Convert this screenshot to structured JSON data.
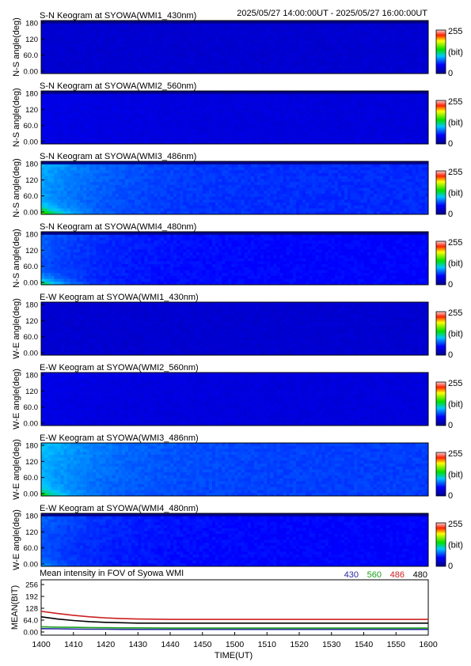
{
  "header": {
    "time_range": "2025/05/27 14:00:00UT - 2025/05/27 16:00:00UT"
  },
  "colorbar": {
    "max_label": "255",
    "unit_label": "(bit)",
    "min_label": "0"
  },
  "chart_data": [
    {
      "type": "heatmap",
      "title": "S-N Keogram at SYOWA(WMI1_430nm)",
      "ylabel": "N-S angle(deg)",
      "yticks": [
        "180",
        "120",
        "60.0",
        "0.00"
      ],
      "ylim": [
        0,
        180
      ],
      "xlim": [
        1400,
        1600
      ],
      "zlim": [
        0,
        255
      ],
      "colorscale": "rainbow",
      "description_level": {
        "base": 0.12,
        "early_boost": 0.0,
        "low_angle_boost": 0.0,
        "top_band_dark": true
      }
    },
    {
      "type": "heatmap",
      "title": "S-N Keogram at SYOWA(WMI2_560nm)",
      "ylabel": "N-S angle(deg)",
      "yticks": [
        "180",
        "120",
        "60.0",
        "0.00"
      ],
      "ylim": [
        0,
        180
      ],
      "xlim": [
        1400,
        1600
      ],
      "zlim": [
        0,
        255
      ],
      "colorscale": "rainbow",
      "description_level": {
        "base": 0.14,
        "early_boost": 0.02,
        "low_angle_boost": 0.0,
        "top_band_dark": true
      }
    },
    {
      "type": "heatmap",
      "title": "S-N Keogram at SYOWA(WMI3_486nm)",
      "ylabel": "N-S angle(deg)",
      "yticks": [
        "180",
        "120",
        "60.0",
        "0.00"
      ],
      "ylim": [
        0,
        180
      ],
      "xlim": [
        1400,
        1600
      ],
      "zlim": [
        0,
        255
      ],
      "colorscale": "rainbow",
      "description_level": {
        "base": 0.24,
        "early_boost": 0.14,
        "low_angle_boost": 0.45,
        "top_band_dark": true
      }
    },
    {
      "type": "heatmap",
      "title": "S-N Keogram at SYOWA(WMI4_480nm)",
      "ylabel": "N-S angle(deg)",
      "yticks": [
        "180",
        "120",
        "60.0",
        "0.00"
      ],
      "ylim": [
        0,
        180
      ],
      "xlim": [
        1400,
        1600
      ],
      "zlim": [
        0,
        255
      ],
      "colorscale": "rainbow",
      "description_level": {
        "base": 0.2,
        "early_boost": 0.1,
        "low_angle_boost": 0.4,
        "top_band_dark": true
      }
    },
    {
      "type": "heatmap",
      "title": "E-W Keogram at SYOWA(WMI1_430nm)",
      "ylabel": "W-E angle(deg)",
      "yticks": [
        "180",
        "120",
        "60.0",
        "0.00"
      ],
      "ylim": [
        0,
        180
      ],
      "xlim": [
        1400,
        1600
      ],
      "zlim": [
        0,
        255
      ],
      "colorscale": "rainbow",
      "description_level": {
        "base": 0.12,
        "early_boost": 0.0,
        "low_angle_boost": 0.0,
        "top_band_dark": false
      }
    },
    {
      "type": "heatmap",
      "title": "E-W Keogram at SYOWA(WMI2_560nm)",
      "ylabel": "W-E angle(deg)",
      "yticks": [
        "180",
        "120",
        "60.0",
        "0.00"
      ],
      "ylim": [
        0,
        180
      ],
      "xlim": [
        1400,
        1600
      ],
      "zlim": [
        0,
        255
      ],
      "colorscale": "rainbow",
      "description_level": {
        "base": 0.14,
        "early_boost": 0.02,
        "low_angle_boost": 0.0,
        "top_band_dark": false
      }
    },
    {
      "type": "heatmap",
      "title": "E-W Keogram at SYOWA(WMI3_486nm)",
      "ylabel": "W-E angle(deg)",
      "yticks": [
        "180",
        "120",
        "60.0",
        "0.00"
      ],
      "ylim": [
        0,
        180
      ],
      "xlim": [
        1400,
        1600
      ],
      "zlim": [
        0,
        255
      ],
      "colorscale": "rainbow",
      "description_level": {
        "base": 0.26,
        "early_boost": 0.14,
        "low_angle_boost": 0.3,
        "top_band_dark": false
      }
    },
    {
      "type": "heatmap",
      "title": "E-W Keogram at SYOWA(WMI4_480nm)",
      "ylabel": "W-E angle(deg)",
      "yticks": [
        "180",
        "120",
        "60.0",
        "0.00"
      ],
      "ylim": [
        0,
        180
      ],
      "xlim": [
        1400,
        1600
      ],
      "zlim": [
        0,
        255
      ],
      "colorscale": "rainbow",
      "description_level": {
        "base": 0.2,
        "early_boost": 0.1,
        "low_angle_boost": 0.15,
        "top_band_dark": true
      }
    },
    {
      "type": "line",
      "title": "Mean intensity in FOV of Syowa WMI",
      "xlabel": "TIME(UT)",
      "ylabel": "MEAN(BIT)",
      "xlim": [
        1400,
        1600
      ],
      "ylim": [
        0,
        256
      ],
      "xticks": [
        "1400",
        "1410",
        "1420",
        "1430",
        "1440",
        "1450",
        "1500",
        "1510",
        "1520",
        "1530",
        "1540",
        "1550",
        "1600"
      ],
      "yticks": [
        "256",
        "192",
        "128",
        "64.0",
        "0.00"
      ],
      "x": [
        0,
        5,
        10,
        15,
        20,
        25,
        30,
        40,
        50,
        60,
        70,
        80,
        90,
        100,
        110,
        120
      ],
      "series": [
        {
          "name": "430",
          "color": "#2a2aa0",
          "values": [
            18,
            17,
            16,
            15,
            15,
            14,
            14,
            14,
            14,
            14,
            14,
            14,
            14,
            14,
            14,
            14
          ]
        },
        {
          "name": "560",
          "color": "#1aa01a",
          "values": [
            28,
            26,
            25,
            24,
            23,
            22,
            22,
            21,
            21,
            21,
            21,
            21,
            21,
            21,
            21,
            21
          ]
        },
        {
          "name": "486",
          "color": "#cc2020",
          "values": [
            112,
            100,
            90,
            82,
            76,
            72,
            70,
            68,
            68,
            68,
            68,
            68,
            68,
            68,
            68,
            68
          ]
        },
        {
          "name": "480",
          "color": "#000000",
          "values": [
            82,
            70,
            62,
            56,
            52,
            50,
            48,
            48,
            48,
            48,
            48,
            48,
            48,
            48,
            48,
            48
          ]
        }
      ]
    }
  ]
}
